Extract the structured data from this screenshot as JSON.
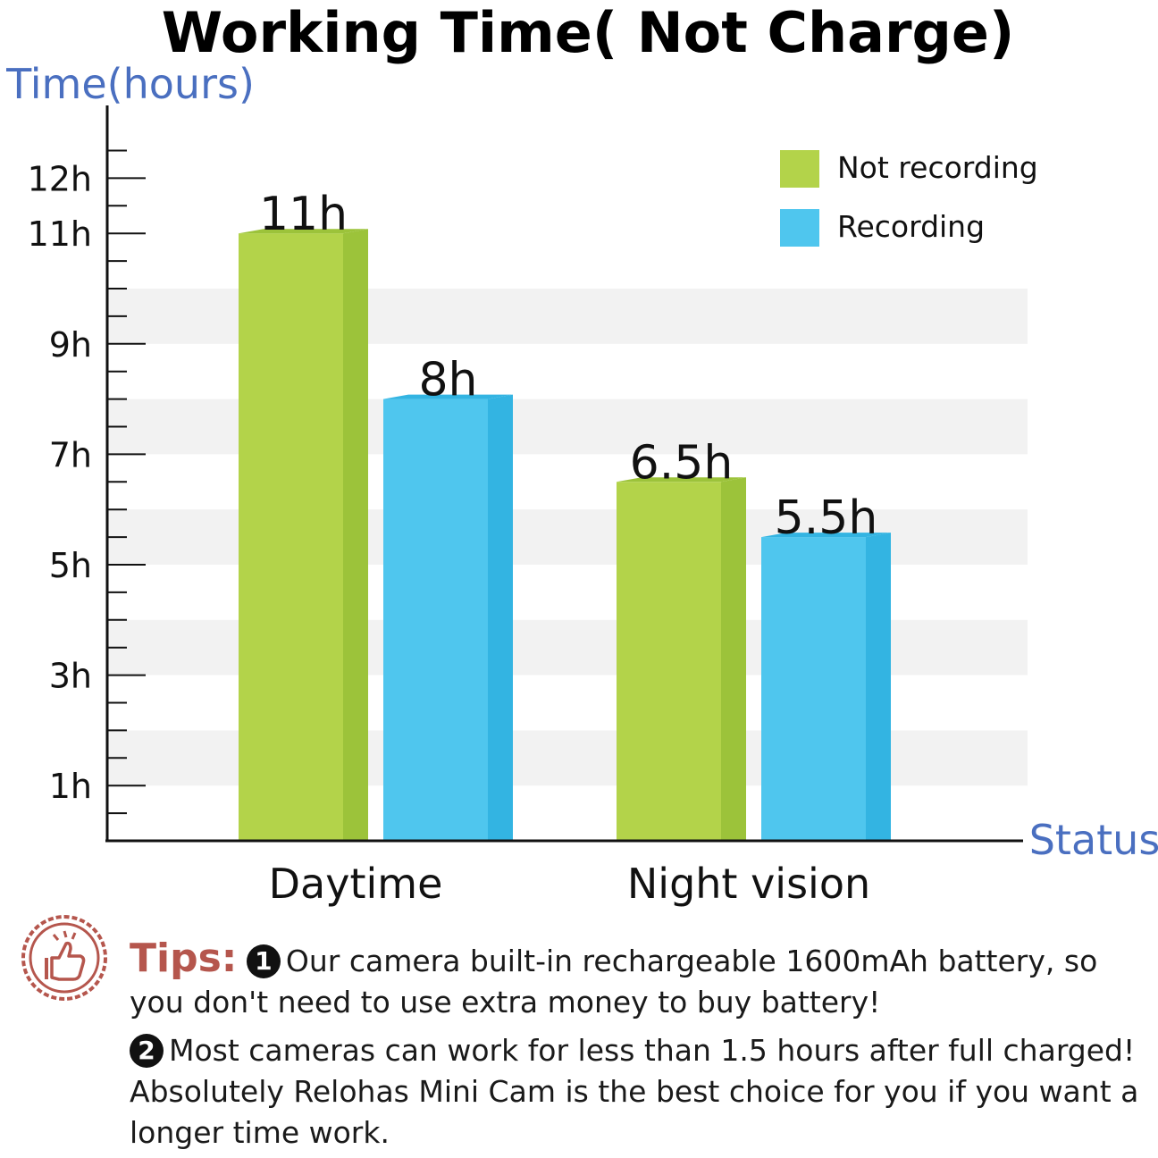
{
  "chart_data": {
    "type": "bar",
    "title": "Working Time( Not Charge)",
    "ylabel": "Time(hours)",
    "xlabel": "Status",
    "categories": [
      "Daytime",
      "Night vision"
    ],
    "series": [
      {
        "name": "Not recording",
        "values": [
          11,
          6.5
        ],
        "color": "#b3d34a",
        "side_color": "#9cc33a",
        "value_labels": [
          "11h",
          "6.5h"
        ]
      },
      {
        "name": "Recording",
        "values": [
          8,
          5.5
        ],
        "color": "#4fc6ee",
        "side_color": "#33b4e2",
        "value_labels": [
          "8h",
          "5.5h"
        ]
      }
    ],
    "yticks": [
      {
        "value": 12,
        "label": "12h"
      },
      {
        "value": 11,
        "label": "11h"
      },
      {
        "value": 9,
        "label": "9h"
      },
      {
        "value": 7,
        "label": "7h"
      },
      {
        "value": 5,
        "label": "5h"
      },
      {
        "value": 3,
        "label": "3h"
      },
      {
        "value": 1,
        "label": "1h"
      }
    ],
    "ylim": [
      0,
      13
    ],
    "grid": "alternating horizontal bands",
    "legend_position": "top-right",
    "axis_label_color": "#4a6fc0",
    "band_color": "#f2f2f2"
  },
  "tips": {
    "label": "Tips:",
    "badge1": "1",
    "line1": "Our camera built-in rechargeable 1600mAh battery, so you don't need to use extra money to buy battery!",
    "badge2": "2",
    "line2": "Most cameras can work for less than 1.5 hours after full charged! Absolutely Relohas Mini Cam is the best choice for you if you want a longer time work.",
    "icon": "thumbs-up-stamp-icon",
    "color": "#b5564d"
  }
}
